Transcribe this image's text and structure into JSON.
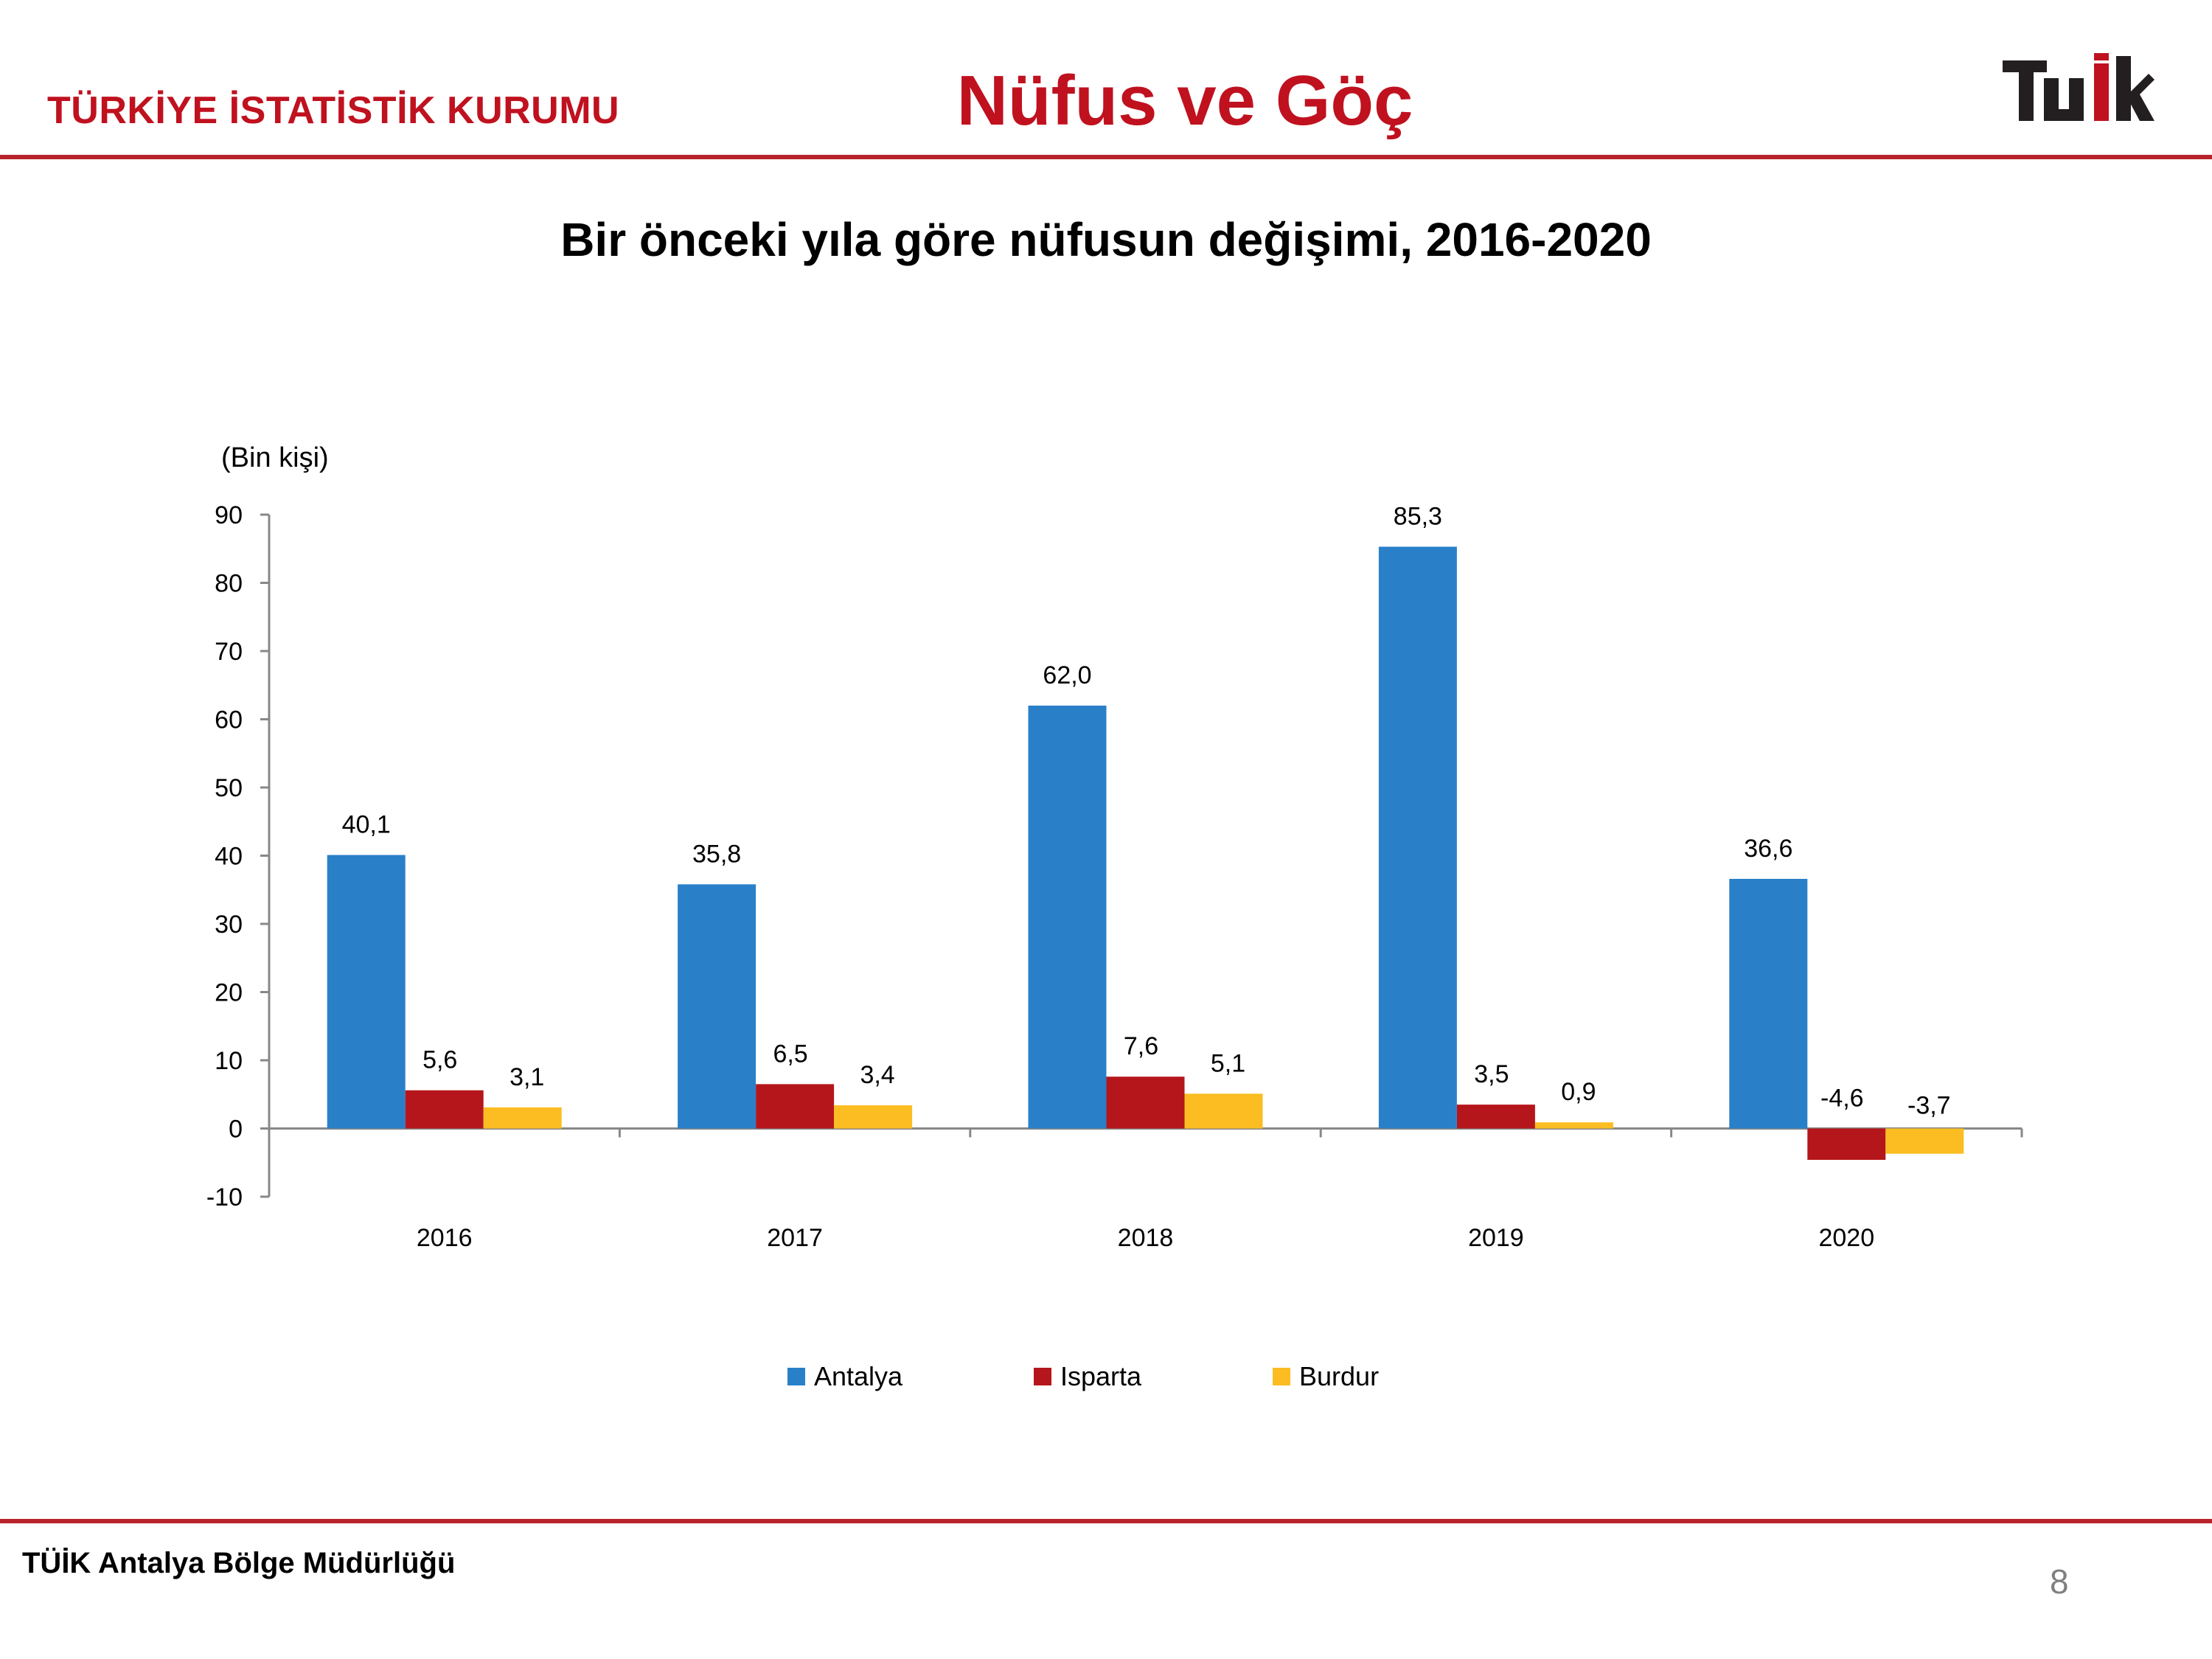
{
  "header": {
    "org_name": "TÜRKİYE İSTATİSTİK KURUMU",
    "section_title": "Nüfus ve Göç",
    "logo_text": "TÜİK"
  },
  "footer": {
    "text": "TÜİK Antalya Bölge Müdürlüğü",
    "page_number": "8"
  },
  "colors": {
    "brand_red": "#c0111f",
    "rule": "#b8232b",
    "axis": "#888888"
  },
  "chart_data": {
    "type": "bar",
    "title": "Bir önceki yıla göre nüfusun değişimi, 2016-2020",
    "unit_label": "(Bin kişi)",
    "xlabel": "",
    "ylabel": "",
    "ylim": [
      -10,
      90
    ],
    "yticks": [
      "-10",
      "0",
      "10",
      "20",
      "30",
      "40",
      "50",
      "60",
      "70",
      "80",
      "90"
    ],
    "grid": false,
    "legend_position": "bottom",
    "categories": [
      "2016",
      "2017",
      "2018",
      "2019",
      "2020"
    ],
    "series": [
      {
        "name": "Antalya",
        "color": "#2980c9",
        "values": [
          40.1,
          35.8,
          62.0,
          85.3,
          36.6
        ],
        "labels": [
          "40,1",
          "35,8",
          "62,0",
          "85,3",
          "36,6"
        ]
      },
      {
        "name": "Isparta",
        "color": "#b5161b",
        "values": [
          5.6,
          6.5,
          7.6,
          3.5,
          -4.6
        ],
        "labels": [
          "5,6",
          "6,5",
          "7,6",
          "3,5",
          "-4,6"
        ]
      },
      {
        "name": "Burdur",
        "color": "#fbbd21",
        "values": [
          3.1,
          3.4,
          5.1,
          0.9,
          -3.7
        ],
        "labels": [
          "3,1",
          "3,4",
          "5,1",
          "0,9",
          "-3,7"
        ]
      }
    ]
  }
}
